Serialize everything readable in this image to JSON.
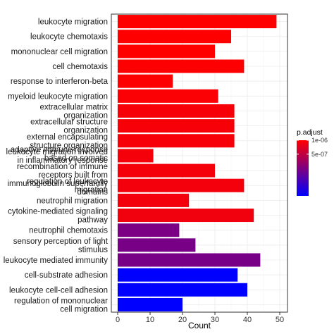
{
  "chart_data": {
    "type": "bar",
    "orientation": "horizontal",
    "categories": [
      [
        "leukocyte migration"
      ],
      [
        "leukocyte chemotaxis"
      ],
      [
        "mononuclear cell migration"
      ],
      [
        "cell chemotaxis"
      ],
      [
        "response to interferon-beta"
      ],
      [
        "myeloid leukocyte migration"
      ],
      [
        "extracellular matrix",
        "organization"
      ],
      [
        "extracellular structure",
        "organization"
      ],
      [
        "external encapsulating",
        "structure organization"
      ],
      [
        "leukocyte migration involved",
        "in inflammatory response"
      ],
      [
        "adaptive immune response",
        "based on somatic",
        "recombination of immune",
        "receptors built from",
        "immunoglobulin superfamily",
        "domains"
      ],
      [
        "regulation of leukocyte",
        "migration"
      ],
      [
        "neutrophil migration"
      ],
      [
        "cytokine-mediated signaling",
        "pathway"
      ],
      [
        "neutrophil chemotaxis"
      ],
      [
        "sensory perception of light",
        "stimulus"
      ],
      [
        "leukocyte mediated immunity"
      ],
      [
        "cell-substrate adhesion"
      ],
      [
        "leukocyte cell-cell adhesion"
      ],
      [
        "regulation of mononuclear",
        "cell migration"
      ]
    ],
    "values": [
      49,
      35,
      30,
      39,
      17,
      31,
      36,
      36,
      36,
      11,
      30,
      39,
      22,
      42,
      19,
      24,
      44,
      37,
      40,
      20
    ],
    "p_adjust": [
      6.6e-07,
      6.6e-07,
      6.6e-07,
      6.55e-07,
      6.55e-07,
      6.5e-07,
      6.4e-07,
      6.4e-07,
      6.4e-07,
      6.35e-07,
      6.35e-07,
      6.3e-07,
      6.3e-07,
      6.25e-07,
      3.3e-07,
      3.2e-07,
      3.2e-07,
      2e-08,
      2e-08,
      2e-08
    ],
    "xlabel": "Count",
    "ylabel": "",
    "xlim": [
      0,
      50
    ],
    "xticks": [
      0,
      10,
      20,
      30,
      40,
      50
    ],
    "grid": true,
    "legend": {
      "title": "p.adjust",
      "position": "right",
      "range": [
        2e-08,
        6.6e-07
      ],
      "ticks": [
        {
          "label": "5e-07",
          "value": 5e-07
        },
        {
          "label": "1e-06",
          "value": 1e-06
        }
      ],
      "color_low": "#0000ff",
      "color_high": "#ff0000"
    }
  }
}
